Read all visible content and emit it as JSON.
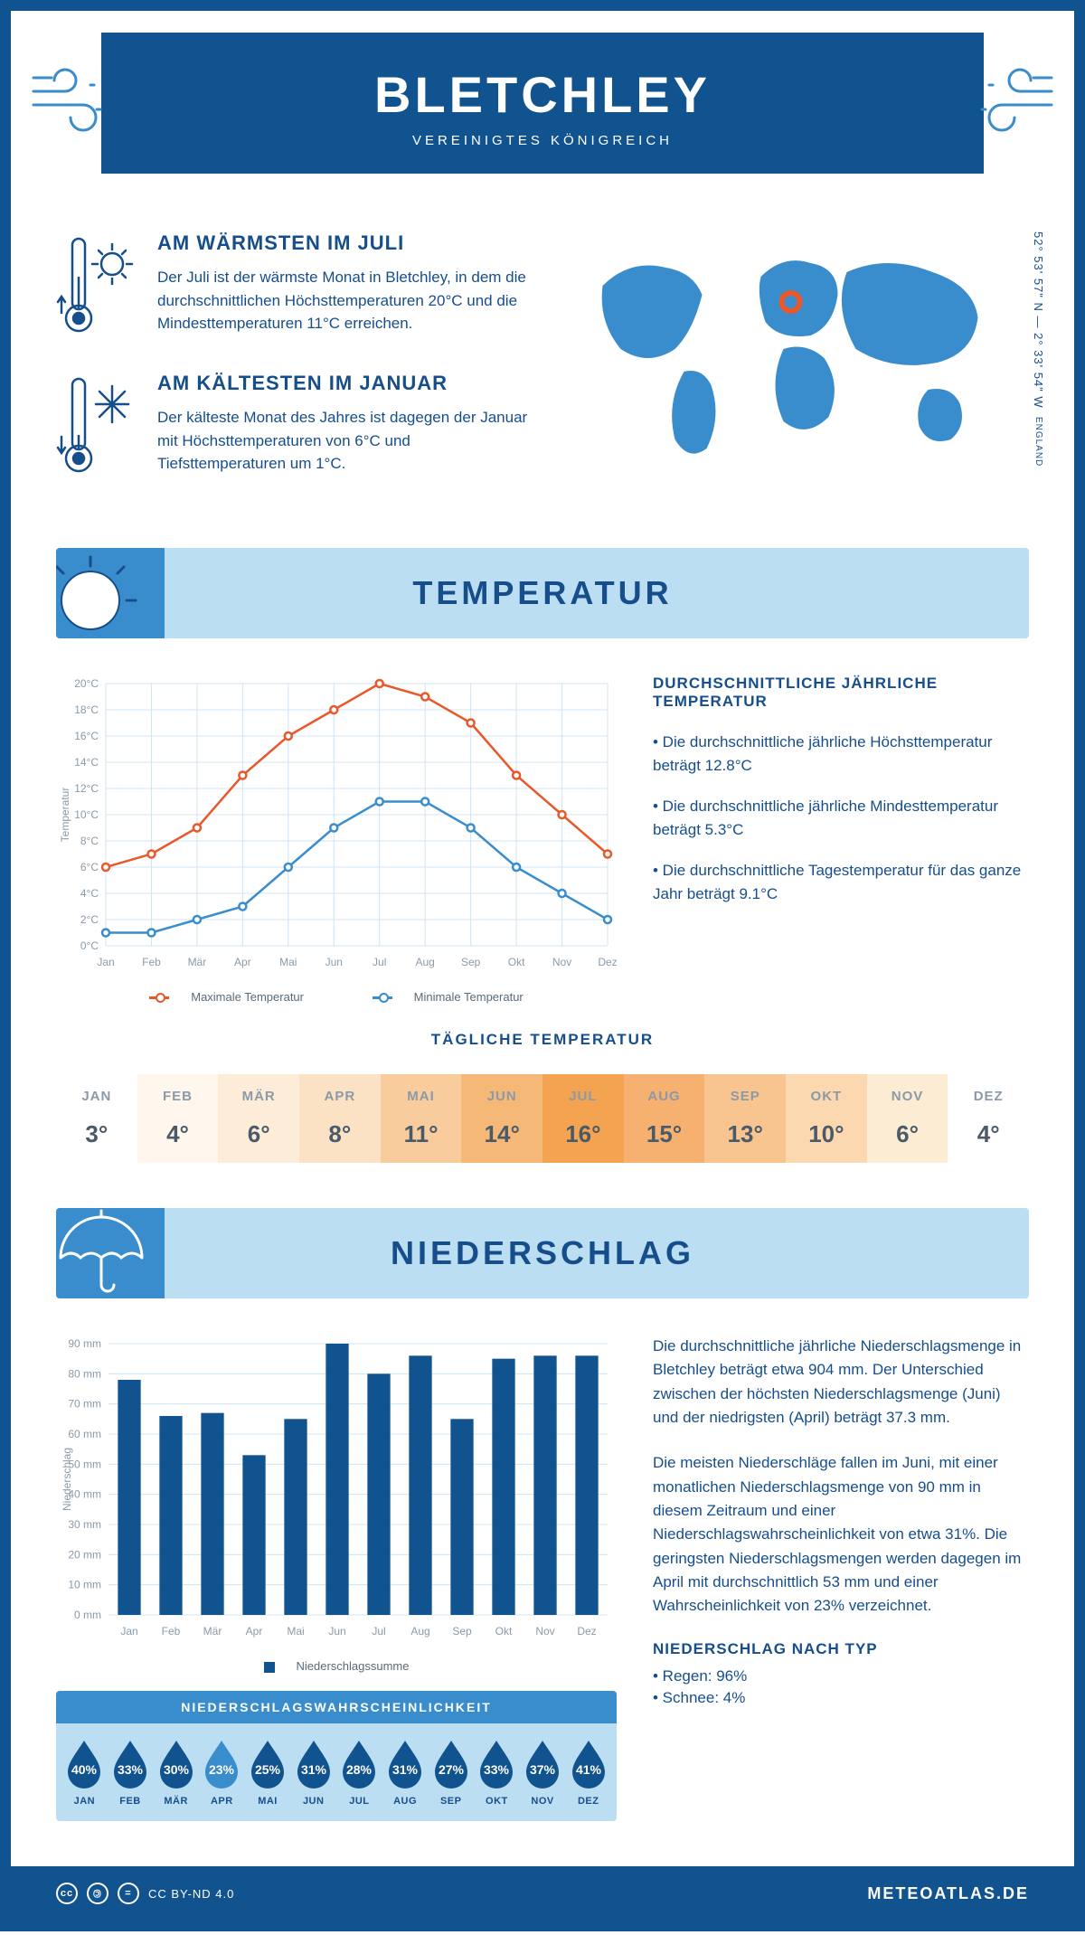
{
  "header": {
    "title": "BLETCHLEY",
    "subtitle": "VEREINIGTES KÖNIGREICH"
  },
  "coordinates": {
    "line1": "52° 53' 57\" N — 2° 33' 54\" W",
    "line2": "ENGLAND"
  },
  "warmest": {
    "title": "AM WÄRMSTEN IM JULI",
    "text": "Der Juli ist der wärmste Monat in Bletchley, in dem die durchschnittlichen Höchsttemperaturen 20°C und die Mindesttemperaturen 11°C erreichen."
  },
  "coldest": {
    "title": "AM KÄLTESTEN IM JANUAR",
    "text": "Der kälteste Monat des Jahres ist dagegen der Januar mit Höchsttemperaturen von 6°C und Tiefsttemperaturen um 1°C."
  },
  "temperature": {
    "section_title": "TEMPERATUR",
    "info_title": "DURCHSCHNITTLICHE JÄHRLICHE TEMPERATUR",
    "bullet1": "• Die durchschnittliche jährliche Höchsttemperatur beträgt 12.8°C",
    "bullet2": "• Die durchschnittliche jährliche Mindesttemperatur beträgt 5.3°C",
    "bullet3": "• Die durchschnittliche Tagestemperatur für das ganze Jahr beträgt 9.1°C",
    "chart": {
      "type": "line",
      "months": [
        "Jan",
        "Feb",
        "Mär",
        "Apr",
        "Mai",
        "Jun",
        "Jul",
        "Aug",
        "Sep",
        "Okt",
        "Nov",
        "Dez"
      ],
      "max_values": [
        6,
        7,
        9,
        13,
        16,
        18,
        20,
        19,
        17,
        13,
        10,
        7
      ],
      "min_values": [
        1,
        1,
        2,
        3,
        6,
        9,
        11,
        11,
        9,
        6,
        4,
        2
      ],
      "max_color": "#e8582a",
      "min_color": "#3a8dcc",
      "y_min": 0,
      "y_max": 20,
      "y_step": 2,
      "y_label": "Temperatur",
      "legend_max": "Maximale Temperatur",
      "legend_min": "Minimale Temperatur",
      "grid_color": "#d0e4f2",
      "marker_size": 4
    },
    "daily": {
      "title": "TÄGLICHE TEMPERATUR",
      "months": [
        "JAN",
        "FEB",
        "MÄR",
        "APR",
        "MAI",
        "JUN",
        "JUL",
        "AUG",
        "SEP",
        "OKT",
        "NOV",
        "DEZ"
      ],
      "values": [
        "3°",
        "4°",
        "6°",
        "8°",
        "11°",
        "14°",
        "16°",
        "15°",
        "13°",
        "10°",
        "6°",
        "4°"
      ],
      "colors": [
        "#ffffff",
        "#fff6ee",
        "#fdecd8",
        "#fbe2c4",
        "#f9cc9d",
        "#f6b877",
        "#f4a350",
        "#f6b070",
        "#f8c490",
        "#fbd8b0",
        "#fdecd4",
        "#ffffff"
      ]
    }
  },
  "precipitation": {
    "section_title": "NIEDERSCHLAG",
    "chart": {
      "type": "bar",
      "months": [
        "Jan",
        "Feb",
        "Mär",
        "Apr",
        "Mai",
        "Jun",
        "Jul",
        "Aug",
        "Sep",
        "Okt",
        "Nov",
        "Dez"
      ],
      "values": [
        78,
        66,
        67,
        53,
        65,
        90,
        80,
        86,
        65,
        85,
        86,
        86
      ],
      "bar_color": "#10538f",
      "y_min": 0,
      "y_max": 90,
      "y_step": 10,
      "y_label": "Niederschlag",
      "legend": "Niederschlagssumme",
      "grid_color": "#d0e4f2"
    },
    "text1": "Die durchschnittliche jährliche Niederschlagsmenge in Bletchley beträgt etwa 904 mm. Der Unterschied zwischen der höchsten Niederschlagsmenge (Juni) und der niedrigsten (April) beträgt 37.3 mm.",
    "text2": "Die meisten Niederschläge fallen im Juni, mit einer monatlichen Niederschlagsmenge von 90 mm in diesem Zeitraum und einer Niederschlagswahrscheinlichkeit von etwa 31%. Die geringsten Niederschlagsmengen werden dagegen im April mit durchschnittlich 53 mm und einer Wahrscheinlichkeit von 23% verzeichnet.",
    "by_type_title": "NIEDERSCHLAG NACH TYP",
    "type_rain": "• Regen: 96%",
    "type_snow": "• Schnee: 4%",
    "probability": {
      "title": "NIEDERSCHLAGSWAHRSCHEINLICHKEIT",
      "months": [
        "JAN",
        "FEB",
        "MÄR",
        "APR",
        "MAI",
        "JUN",
        "JUL",
        "AUG",
        "SEP",
        "OKT",
        "NOV",
        "DEZ"
      ],
      "values": [
        "40%",
        "33%",
        "30%",
        "23%",
        "25%",
        "31%",
        "28%",
        "31%",
        "27%",
        "33%",
        "37%",
        "41%"
      ],
      "drop_color_dark": "#10538f",
      "drop_color_light": "#3a8dcc"
    }
  },
  "footer": {
    "license": "CC BY-ND 4.0",
    "site": "METEOATLAS.DE"
  }
}
